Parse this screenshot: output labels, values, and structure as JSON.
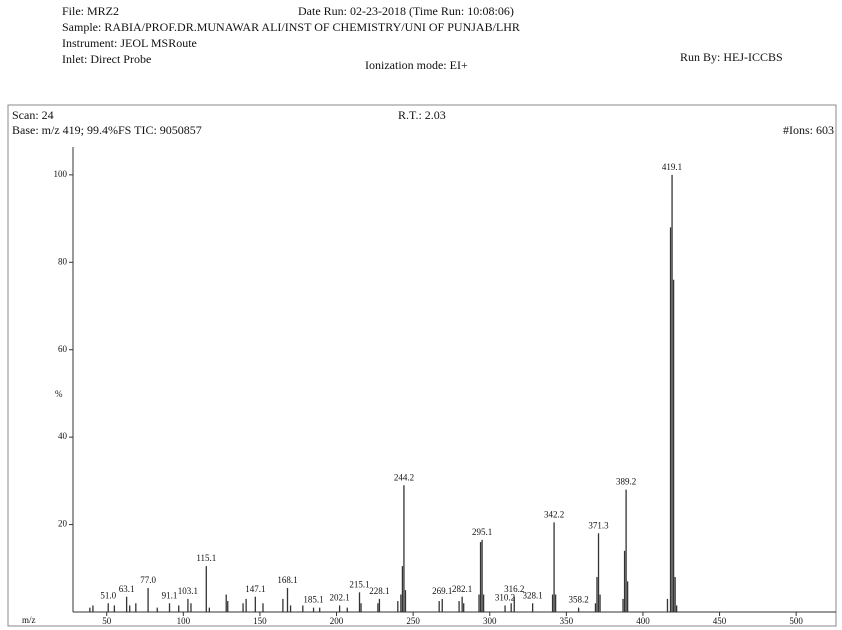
{
  "chart_data": {
    "type": "stem",
    "file": "File: MRZ2",
    "date_run": "Date Run: 02-23-2018 (Time Run: 10:08:06)",
    "sample": "Sample: RABIA/PROF.DR.MUNAWAR ALI/INST OF CHEMISTRY/UNI OF PUNJAB/LHR",
    "instrument": "Instrument: JEOL MSRoute",
    "run_by": "Run By: HEJ-ICCBS",
    "inlet": "Inlet: Direct Probe",
    "ionization": "Ionization mode: EI+",
    "scan": "Scan: 24",
    "rt": "R.T.: 2.03",
    "base": "Base: m/z 419; 99.4%FS  TIC: 9050857",
    "ions": "#Ions: 603",
    "xlabel": "m/z",
    "ylabel": "%",
    "color": "#333333",
    "xlim": [
      28,
      526
    ],
    "ylim": [
      0,
      105
    ],
    "xticks": [
      50,
      100,
      150,
      200,
      250,
      300,
      350,
      400,
      450,
      500
    ],
    "yticks": [
      20,
      40,
      60,
      80,
      100
    ],
    "x": [
      39,
      41,
      51,
      55,
      63,
      65,
      69,
      77,
      83,
      91,
      97,
      103,
      105,
      115,
      117,
      128,
      129,
      139,
      141,
      147,
      152,
      165,
      168,
      170,
      178,
      185,
      189,
      202,
      207,
      215,
      216,
      227,
      228,
      240,
      242,
      243,
      244,
      245,
      267,
      269,
      280,
      282,
      283,
      293,
      294,
      295,
      296,
      310,
      314,
      316,
      328,
      341,
      342,
      343,
      358,
      369,
      370,
      371,
      372,
      387,
      388,
      389,
      390,
      416,
      418,
      419,
      420,
      421,
      422
    ],
    "values": [
      1,
      1.5,
      2,
      1.5,
      3.5,
      1.5,
      2,
      5.5,
      1,
      2,
      1.5,
      3,
      2,
      10.5,
      1,
      4,
      2.5,
      2,
      3,
      3.5,
      2,
      3,
      5.5,
      1.5,
      1.5,
      1,
      1,
      1.5,
      1,
      4.5,
      2,
      2,
      3,
      2.5,
      4,
      10.5,
      29,
      5,
      2.5,
      3,
      2.5,
      3.5,
      2,
      4,
      16,
      16.5,
      4,
      1.5,
      2,
      3.5,
      2,
      4,
      20.5,
      4,
      1,
      2,
      8,
      18,
      4,
      3,
      14,
      28,
      7,
      3,
      88,
      100,
      76,
      8,
      1.5
    ],
    "x_labels": [
      null,
      null,
      "51.0",
      null,
      "63.1",
      null,
      null,
      "77.0",
      null,
      "91.1",
      null,
      "103.1",
      null,
      "115.1",
      null,
      null,
      null,
      null,
      null,
      "147.1",
      null,
      null,
      "168.1",
      null,
      null,
      "185.1",
      null,
      "202.1",
      null,
      "215.1",
      null,
      null,
      "228.1",
      null,
      null,
      null,
      "244.2",
      null,
      null,
      "269.1",
      null,
      "282.1",
      null,
      null,
      null,
      "295.1",
      null,
      "310.2",
      null,
      "316.2",
      "328.1",
      null,
      "342.2",
      null,
      "358.2",
      null,
      null,
      "371.3",
      null,
      null,
      null,
      "389.2",
      null,
      null,
      null,
      "419.1",
      null,
      null,
      null
    ]
  }
}
